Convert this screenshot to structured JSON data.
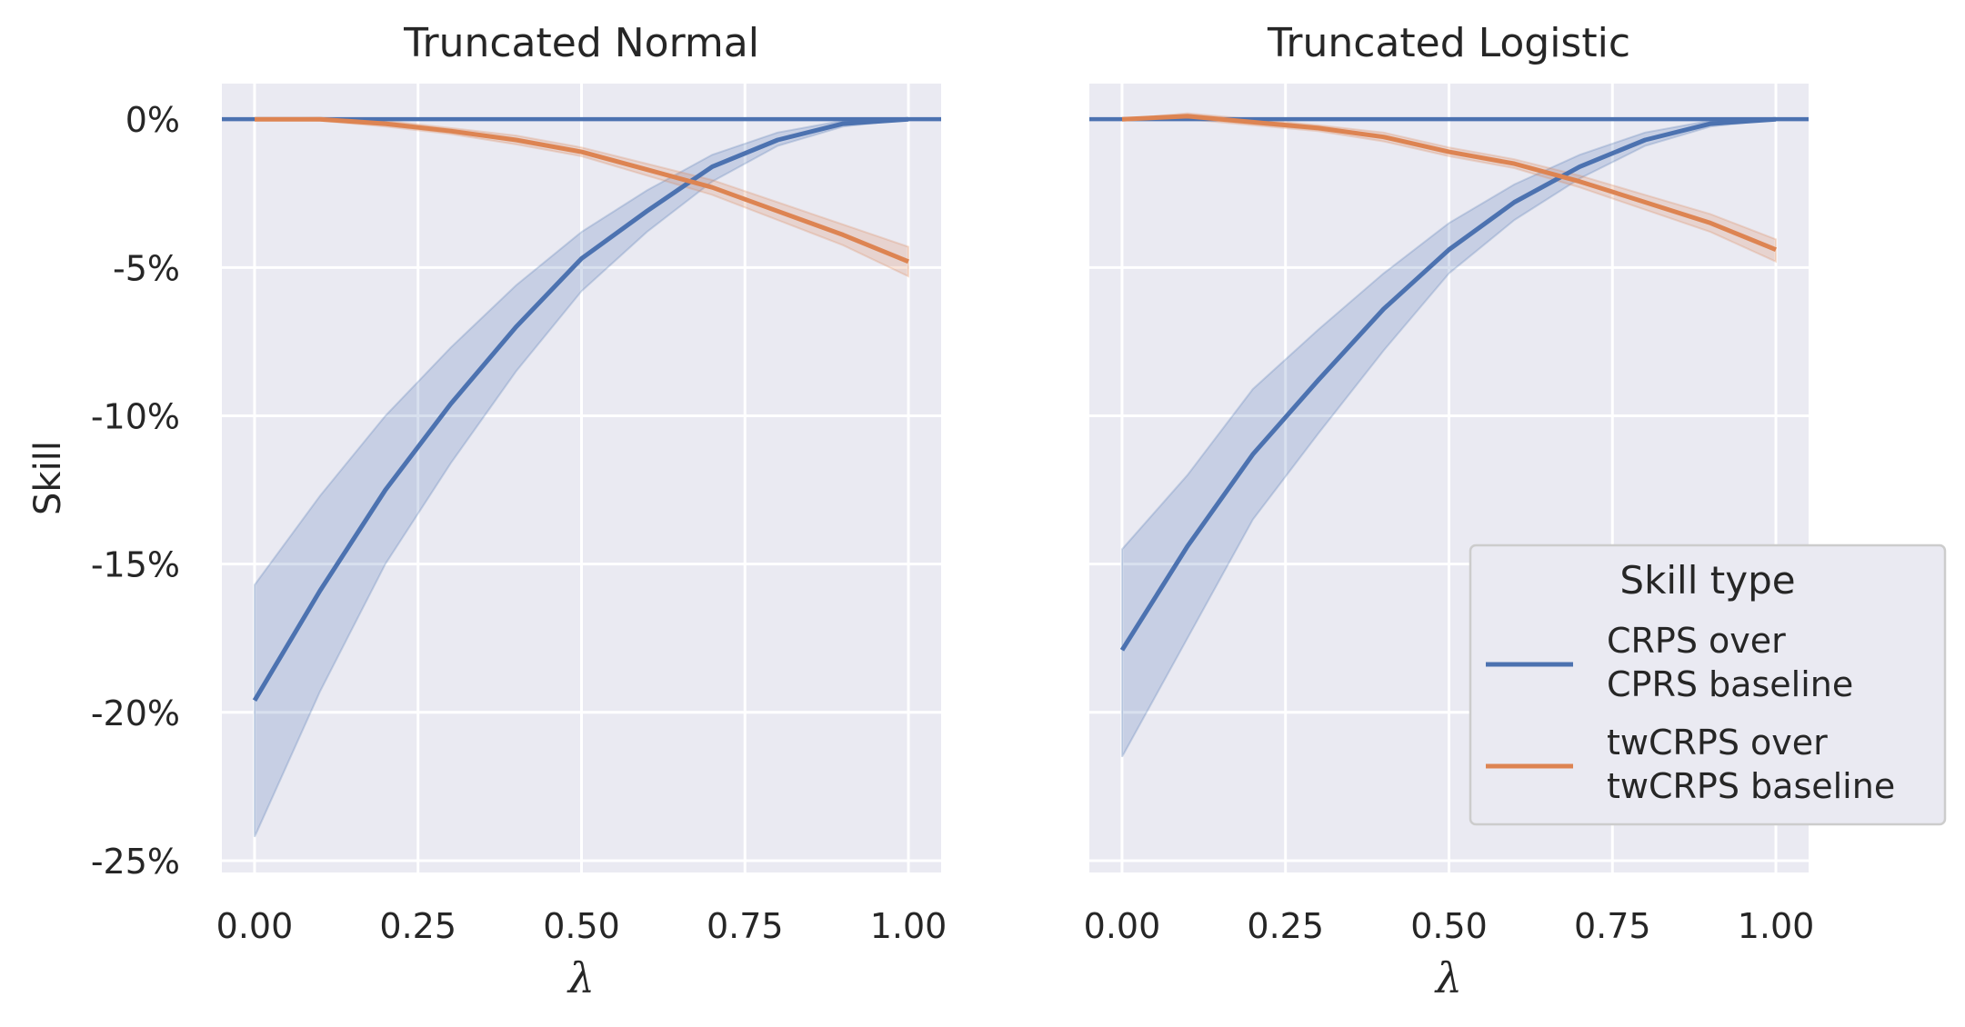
{
  "chart_data": [
    {
      "type": "line",
      "title": "Truncated Normal",
      "xlabel": "λ",
      "ylabel": "Skill",
      "xlim": [
        -0.05,
        1.05
      ],
      "ylim": [
        -25.4,
        1.2
      ],
      "xticks": [
        0.0,
        0.25,
        0.5,
        0.75,
        1.0
      ],
      "xtick_labels": [
        "0.00",
        "0.25",
        "0.50",
        "0.75",
        "1.00"
      ],
      "yticks": [
        0,
        -5,
        -10,
        -15,
        -20,
        -25
      ],
      "ytick_labels": [
        "0%",
        "-5%",
        "-10%",
        "-15%",
        "-20%",
        "-25%"
      ],
      "grid": true,
      "x": [
        0.0,
        0.1,
        0.2,
        0.3,
        0.4,
        0.5,
        0.6,
        0.7,
        0.8,
        0.9,
        1.0
      ],
      "series": [
        {
          "name": "CRPS over CPRS baseline",
          "color": "#4c72b0",
          "values": [
            -19.6,
            -15.9,
            -12.5,
            -9.6,
            -7.0,
            -4.7,
            -3.1,
            -1.6,
            -0.7,
            -0.15,
            0.0
          ],
          "band_upper": [
            -15.7,
            -12.7,
            -10.0,
            -7.7,
            -5.6,
            -3.8,
            -2.4,
            -1.2,
            -0.45,
            -0.05,
            0.0
          ],
          "band_lower": [
            -24.2,
            -19.3,
            -15.0,
            -11.6,
            -8.5,
            -5.8,
            -3.8,
            -2.1,
            -0.9,
            -0.25,
            0.0
          ]
        },
        {
          "name": "twCRPS over twCRPS baseline",
          "color": "#dd8452",
          "values": [
            0.0,
            0.0,
            -0.15,
            -0.4,
            -0.7,
            -1.1,
            -1.7,
            -2.3,
            -3.1,
            -3.9,
            -4.8
          ],
          "band_upper": [
            0.0,
            0.05,
            -0.05,
            -0.3,
            -0.55,
            -0.95,
            -1.5,
            -2.05,
            -2.8,
            -3.55,
            -4.3
          ],
          "band_lower": [
            0.0,
            -0.05,
            -0.25,
            -0.5,
            -0.85,
            -1.25,
            -1.9,
            -2.55,
            -3.4,
            -4.25,
            -5.3
          ]
        },
        {
          "name": "",
          "color": "#4c72b0",
          "values": [
            0.0,
            0.0,
            0.0,
            0.0,
            0.0,
            0.0,
            0.0,
            0.0,
            0.0,
            0.0,
            0.0
          ]
        }
      ]
    },
    {
      "type": "line",
      "title": "Truncated Logistic",
      "xlabel": "λ",
      "ylabel": "",
      "xlim": [
        -0.05,
        1.05
      ],
      "ylim": [
        -25.4,
        1.2
      ],
      "xticks": [
        0.0,
        0.25,
        0.5,
        0.75,
        1.0
      ],
      "xtick_labels": [
        "0.00",
        "0.25",
        "0.50",
        "0.75",
        "1.00"
      ],
      "yticks": [
        0,
        -5,
        -10,
        -15,
        -20,
        -25
      ],
      "ytick_labels": [],
      "grid": true,
      "x": [
        0.0,
        0.1,
        0.2,
        0.3,
        0.4,
        0.5,
        0.6,
        0.7,
        0.8,
        0.9,
        1.0
      ],
      "series": [
        {
          "name": "CRPS over CPRS baseline",
          "color": "#4c72b0",
          "values": [
            -17.9,
            -14.4,
            -11.3,
            -8.8,
            -6.4,
            -4.4,
            -2.8,
            -1.6,
            -0.7,
            -0.15,
            0.0
          ],
          "band_upper": [
            -14.5,
            -12.0,
            -9.1,
            -7.1,
            -5.2,
            -3.5,
            -2.2,
            -1.2,
            -0.45,
            -0.05,
            0.0
          ],
          "band_lower": [
            -21.5,
            -17.5,
            -13.5,
            -10.6,
            -7.8,
            -5.2,
            -3.4,
            -2.0,
            -0.9,
            -0.25,
            0.0
          ]
        },
        {
          "name": "twCRPS over twCRPS baseline",
          "color": "#dd8452",
          "values": [
            0.0,
            0.1,
            -0.1,
            -0.3,
            -0.6,
            -1.1,
            -1.5,
            -2.1,
            -2.8,
            -3.5,
            -4.4
          ],
          "band_upper": [
            0.0,
            0.2,
            0.0,
            -0.2,
            -0.45,
            -0.95,
            -1.35,
            -1.9,
            -2.55,
            -3.2,
            -4.05
          ],
          "band_lower": [
            0.0,
            0.0,
            -0.2,
            -0.4,
            -0.75,
            -1.25,
            -1.65,
            -2.3,
            -3.05,
            -3.8,
            -4.8
          ]
        },
        {
          "name": "",
          "color": "#4c72b0",
          "values": [
            0.0,
            0.0,
            0.0,
            0.0,
            0.0,
            0.0,
            0.0,
            0.0,
            0.0,
            0.0,
            0.0
          ]
        }
      ]
    }
  ],
  "legend": {
    "title": "Skill type",
    "placement": "lower-right",
    "entries": [
      {
        "line1": "CRPS over",
        "line2": "CPRS baseline",
        "color": "#4c72b0"
      },
      {
        "line1": "twCRPS over",
        "line2": "twCRPS baseline",
        "color": "#dd8452"
      }
    ]
  }
}
